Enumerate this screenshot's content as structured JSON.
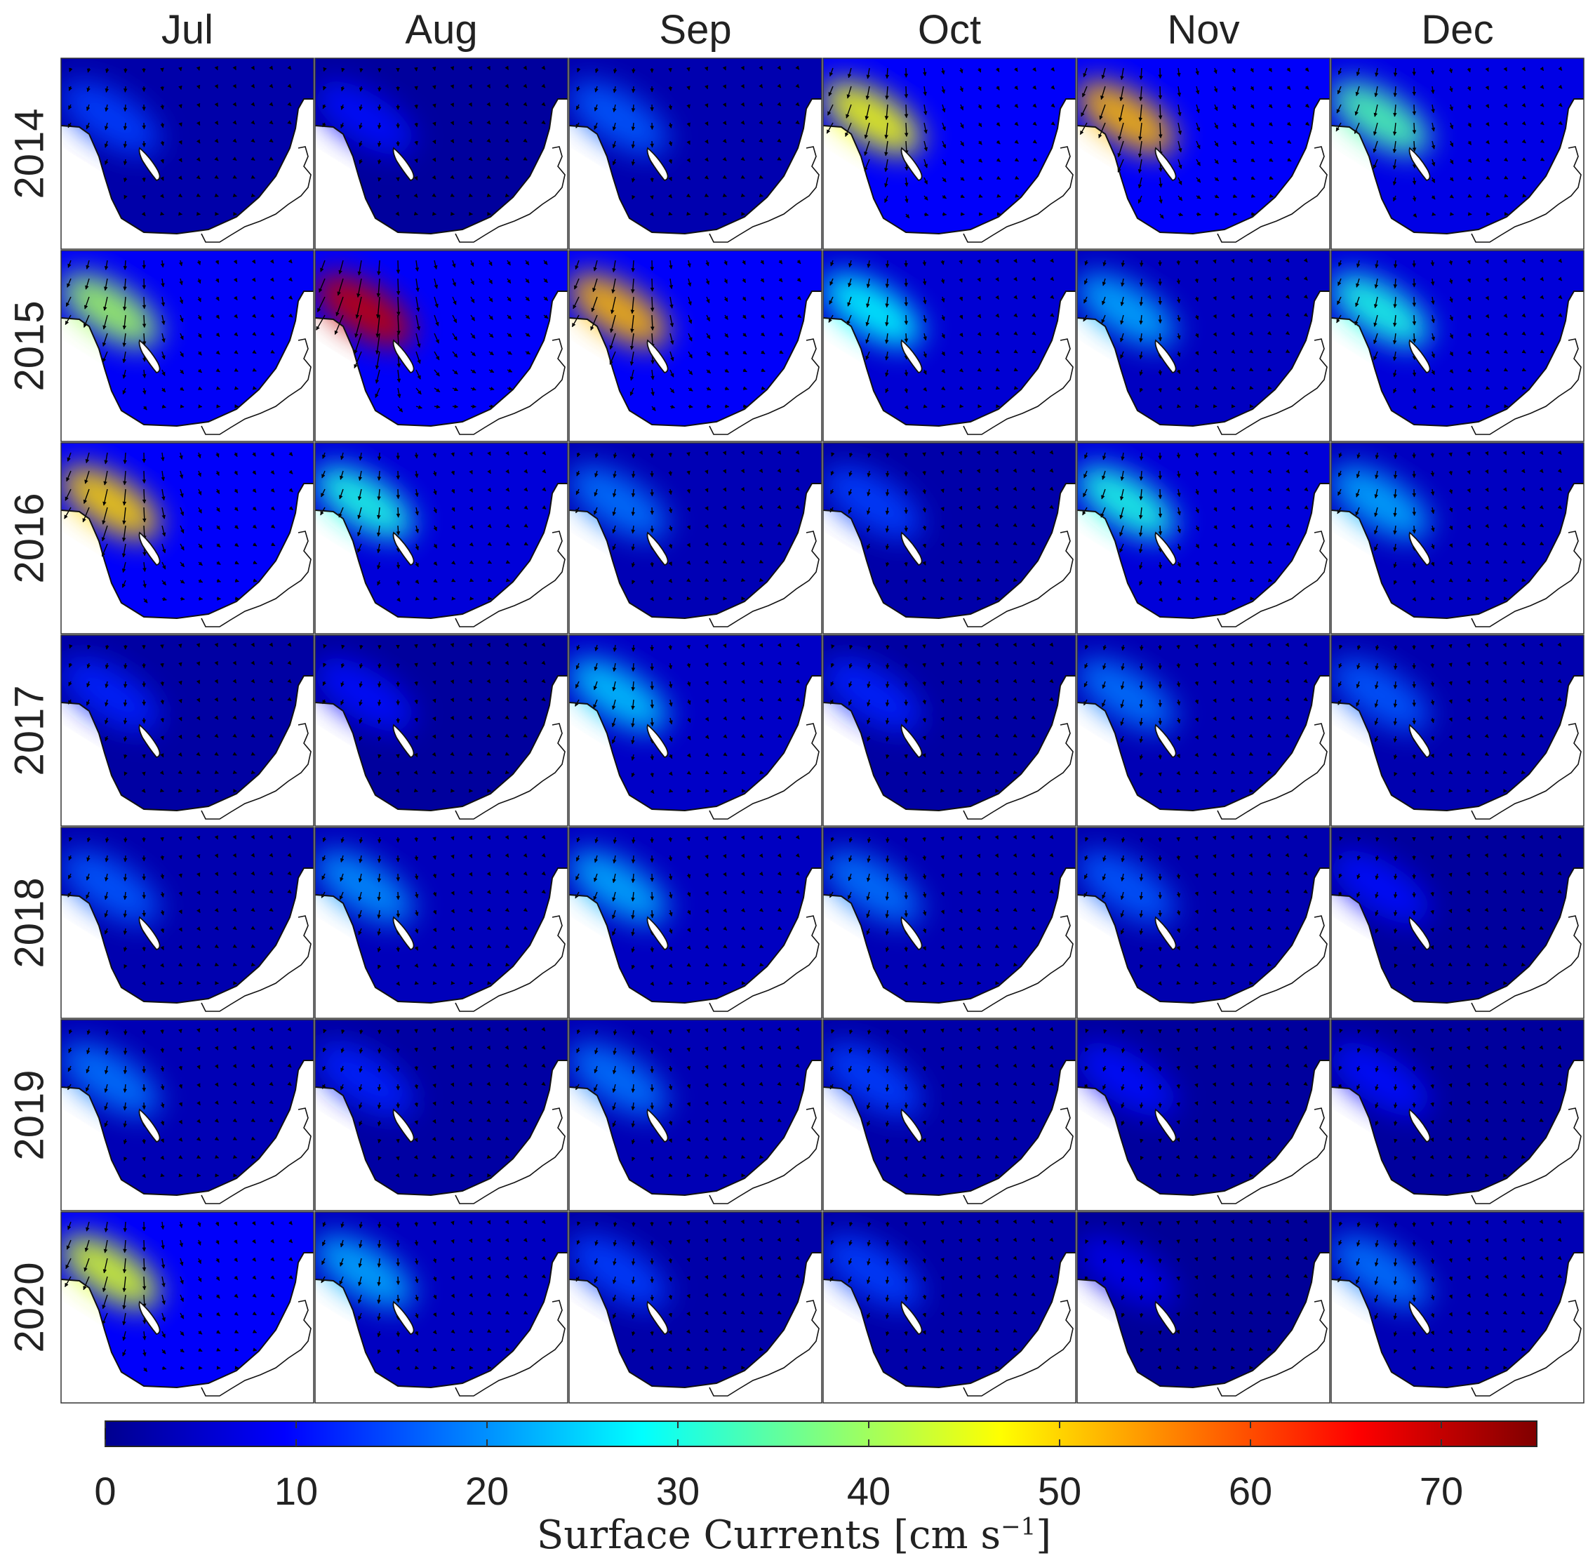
{
  "months": [
    "Jul",
    "Aug",
    "Sep",
    "Oct",
    "Nov",
    "Dec"
  ],
  "years": [
    "2014",
    "2015",
    "2016",
    "2017",
    "2018",
    "2019",
    "2020"
  ],
  "colorbar": {
    "ticks": [
      "0",
      "10",
      "20",
      "30",
      "40",
      "50",
      "60",
      "70"
    ],
    "min": 0,
    "max": 75,
    "label_main": "Surface Currents [cm s",
    "label_exp": "−1",
    "label_close": "]",
    "colormap": "jet"
  },
  "peak_speeds_cm_s": [
    [
      14,
      10,
      16,
      46,
      52,
      34
    ],
    [
      40,
      70,
      52,
      28,
      22,
      30
    ],
    [
      50,
      30,
      18,
      14,
      30,
      22
    ],
    [
      12,
      10,
      24,
      12,
      18,
      16
    ],
    [
      16,
      20,
      22,
      18,
      16,
      10
    ],
    [
      18,
      12,
      18,
      14,
      10,
      10
    ],
    [
      44,
      22,
      14,
      14,
      8,
      18
    ]
  ],
  "colors": {
    "land": "#ffffff",
    "coast": "#111111",
    "arrows": "#000000",
    "background": "#ffffff"
  }
}
